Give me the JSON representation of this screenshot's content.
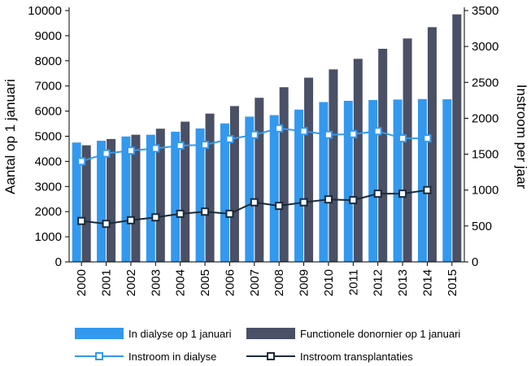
{
  "chart_data": {
    "type": "bar",
    "categories": [
      "2000",
      "2001",
      "2002",
      "2003",
      "2004",
      "2005",
      "2006",
      "2007",
      "2008",
      "2009",
      "2010",
      "2011",
      "2012",
      "2013",
      "2014",
      "2015"
    ],
    "ylabel_left": "Aantal op 1 januari",
    "ylabel_right": "Instroom per jaar",
    "ylim_left": [
      0,
      10000
    ],
    "ylim_right": [
      0,
      3500
    ],
    "yticks_left": [
      "0",
      "1000",
      "2000",
      "3000",
      "4000",
      "5000",
      "6000",
      "7000",
      "8000",
      "9000",
      "10000"
    ],
    "yticks_right": [
      "0",
      "500",
      "1000",
      "1500",
      "2000",
      "2500",
      "3000",
      "3500"
    ],
    "series": [
      {
        "name": "In dialyse op 1 januari",
        "kind": "bar",
        "axis": "left",
        "color": "#3399ee",
        "values": [
          4750,
          4820,
          4990,
          5060,
          5180,
          5310,
          5510,
          5780,
          5840,
          6060,
          6360,
          6410,
          6440,
          6460,
          6480,
          6470
        ]
      },
      {
        "name": "Functionele donornier op 1 januari",
        "kind": "bar",
        "axis": "left",
        "color": "#4a5065",
        "values": [
          4640,
          4890,
          5060,
          5300,
          5580,
          5900,
          6200,
          6530,
          6950,
          7330,
          7660,
          8080,
          8480,
          8890,
          9340,
          9850
        ]
      },
      {
        "name": "Instroom in dialyse",
        "kind": "line",
        "axis": "right",
        "color": "#3399ee",
        "values": [
          1400,
          1510,
          1550,
          1580,
          1620,
          1630,
          1710,
          1770,
          1860,
          1820,
          1770,
          1780,
          1820,
          1720,
          1720,
          null
        ]
      },
      {
        "name": "Instroom transplantaties",
        "kind": "line",
        "axis": "right",
        "color": "#1a2a3a",
        "values": [
          570,
          530,
          580,
          620,
          670,
          700,
          670,
          830,
          780,
          830,
          870,
          860,
          950,
          950,
          1000,
          null
        ]
      }
    ],
    "legend": "bottom"
  }
}
